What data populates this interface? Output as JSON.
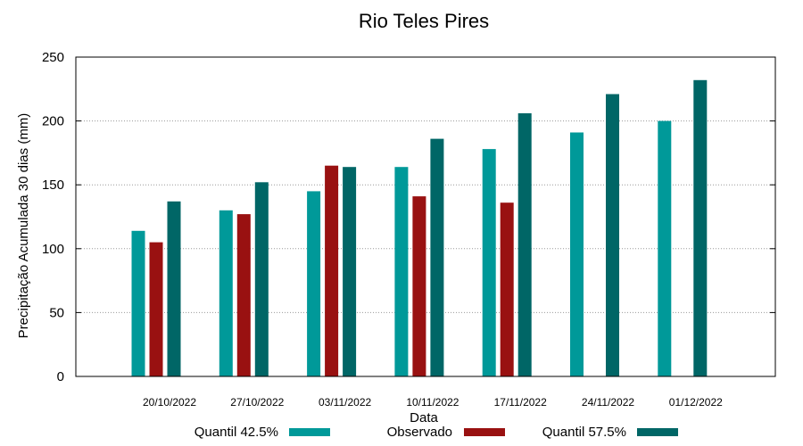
{
  "chart_data": {
    "type": "bar",
    "title": "Rio Teles Pires",
    "xlabel": "Data",
    "ylabel": "Precipitação Acumulada 30 dias (mm)",
    "ylim": [
      0,
      250
    ],
    "yticks": [
      0,
      50,
      100,
      150,
      200,
      250
    ],
    "grid": true,
    "legend_position": "bottom",
    "categories": [
      "20/10/2022",
      "27/10/2022",
      "03/11/2022",
      "10/11/2022",
      "17/11/2022",
      "24/11/2022",
      "01/12/2022"
    ],
    "series": [
      {
        "name": "Quantil 42.5%",
        "color": "#009999",
        "values": [
          114,
          130,
          145,
          164,
          178,
          191,
          200
        ]
      },
      {
        "name": "Observado",
        "color": "#991111",
        "values": [
          105,
          127,
          165,
          141,
          136,
          null,
          null
        ]
      },
      {
        "name": "Quantil 57.5%",
        "color": "#006666",
        "values": [
          137,
          152,
          164,
          186,
          206,
          221,
          232
        ]
      }
    ]
  }
}
